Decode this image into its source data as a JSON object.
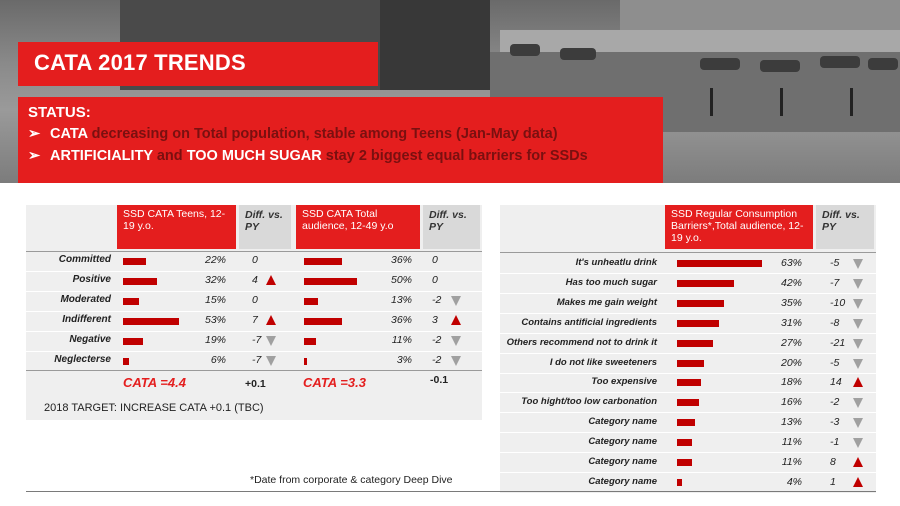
{
  "title": "CATA 2017 TRENDS",
  "status": {
    "label": "STATUS:",
    "bullets": [
      {
        "keyword": "CATA",
        "rest": " decreasing on Total population, stable among Teens (Jan-May data)"
      },
      {
        "keyword": "ARTIFICIALITY",
        "mid": " and ",
        "keyword2": "TOO MUCH SUGAR",
        "rest": " stay 2 biggest equal barriers for SSDs"
      }
    ]
  },
  "left_table": {
    "headers": {
      "teens": "SSD CATA Teens, 12-19 y.o.",
      "diff1": "Diff. vs. PY",
      "total": "SSD CATA Total audience, 12-49 y.o",
      "diff2": "Diff. vs. PY"
    },
    "rows": [
      {
        "label": "Committed",
        "teens": 22,
        "teens_txt": "22%",
        "diff1": "0",
        "diff1_dir": "none",
        "total": 36,
        "total_txt": "36%",
        "diff2": "0",
        "diff2_dir": "none"
      },
      {
        "label": "Positive",
        "teens": 32,
        "teens_txt": "32%",
        "diff1": "4",
        "diff1_dir": "up",
        "total": 50,
        "total_txt": "50%",
        "diff2": "0",
        "diff2_dir": "none"
      },
      {
        "label": "Moderated",
        "teens": 15,
        "teens_txt": "15%",
        "diff1": "0",
        "diff1_dir": "none",
        "total": 13,
        "total_txt": "13%",
        "diff2": "-2",
        "diff2_dir": "down"
      },
      {
        "label": "Indifferent",
        "teens": 53,
        "teens_txt": "53%",
        "diff1": "7",
        "diff1_dir": "up",
        "total": 36,
        "total_txt": "36%",
        "diff2": "3",
        "diff2_dir": "up"
      },
      {
        "label": "Negative",
        "teens": 19,
        "teens_txt": "19%",
        "diff1": "-7",
        "diff1_dir": "down",
        "total": 11,
        "total_txt": "11%",
        "diff2": "-2",
        "diff2_dir": "down"
      },
      {
        "label": "Neglecterse",
        "teens": 6,
        "teens_txt": "6%",
        "diff1": "-7",
        "diff1_dir": "down",
        "total": 3,
        "total_txt": "3%",
        "diff2": "-2",
        "diff2_dir": "down"
      }
    ],
    "cata_teens": "CATA =4.4",
    "cata_teens_diff": "+0.1",
    "cata_total": "CATA =3.3",
    "cata_total_diff": "-0.1",
    "target": "2018 TARGET: INCREASE CATA +0.1 (TBC)"
  },
  "right_table": {
    "headers": {
      "barriers": "SSD Regular Consumption Barriers*,Total audience, 12-19 y.o.",
      "diff": "Diff. vs. PY"
    },
    "rows": [
      {
        "label": "It's unheatlu drink",
        "value": 63,
        "txt": "63%",
        "diff": "-5",
        "dir": "down"
      },
      {
        "label": "Has too much sugar",
        "value": 42,
        "txt": "42%",
        "diff": "-7",
        "dir": "down"
      },
      {
        "label": "Makes me gain weight",
        "value": 35,
        "txt": "35%",
        "diff": "-10",
        "dir": "down"
      },
      {
        "label": "Contains antificial ingredients",
        "value": 31,
        "txt": "31%",
        "diff": "-8",
        "dir": "down"
      },
      {
        "label": "Others recommend not to drink it",
        "value": 27,
        "txt": "27%",
        "diff": "-21",
        "dir": "down"
      },
      {
        "label": "I do not like sweeteners",
        "value": 20,
        "txt": "20%",
        "diff": "-5",
        "dir": "down"
      },
      {
        "label": "Too expensive",
        "value": 18,
        "txt": "18%",
        "diff": "14",
        "dir": "up"
      },
      {
        "label": "Too hight/too low carbonation",
        "value": 16,
        "txt": "16%",
        "diff": "-2",
        "dir": "down"
      },
      {
        "label": "Category name",
        "value": 13,
        "txt": "13%",
        "diff": "-3",
        "dir": "down"
      },
      {
        "label": "Category name",
        "value": 11,
        "txt": "11%",
        "diff": "-1",
        "dir": "down"
      },
      {
        "label": "Category name",
        "value": 11,
        "txt": "11%",
        "diff": "8",
        "dir": "up"
      },
      {
        "label": "Category name",
        "value": 4,
        "txt": "4%",
        "diff": "1",
        "dir": "up"
      }
    ]
  },
  "footnote": "*Date from corporate & category Deep Dive",
  "colors": {
    "accent": "#e41e1e",
    "bar": "#c00000",
    "down": "#a0a0a0"
  }
}
